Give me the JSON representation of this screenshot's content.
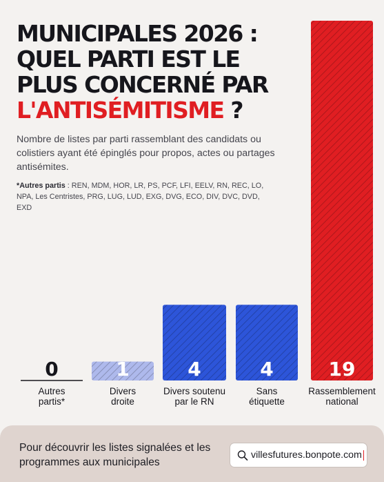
{
  "title": {
    "line1": "MUNICIPALES 2026 :",
    "line2": "QUEL PARTI EST LE",
    "line3": "PLUS CONCERNÉ PAR",
    "accent": "L'ANTISÉMITISME",
    "end": " ?"
  },
  "subtitle": "Nombre de listes par parti rassemblant des candidats ou colistiers ayant été épinglés pour propos, actes ou partages antisémites.",
  "note": {
    "label": "*Autres partis",
    "text": " : REN, MDM, HOR, LR, PS, PCF, LFI, EELV, RN, REC, LO, NPA, Les Centristes, PRG, LUG, LUD, EXG, DVG, ECO, DIV, DVC, DVD, EXD"
  },
  "chart_data": {
    "type": "bar",
    "categories": [
      "Autres partis*",
      "Divers droite",
      "Divers soutenu par le RN",
      "Sans étiquette",
      "Rassemblement national"
    ],
    "category_lines": [
      [
        "Autres",
        "partis*"
      ],
      [
        "Divers",
        "droite"
      ],
      [
        "Divers soutenu",
        "par le RN"
      ],
      [
        "Sans",
        "étiquette"
      ],
      [
        "Rassemblement",
        "national"
      ]
    ],
    "values": [
      0,
      1,
      4,
      4,
      19
    ],
    "value_labels": [
      "0",
      "1",
      "4",
      "4",
      "19"
    ],
    "bar_colors": [
      "#16161c",
      "#aeb9ec",
      "#2d55d9",
      "#2d55d9",
      "#e01e22"
    ],
    "label_colors": [
      "#16161c",
      "#ffffff",
      "#ffffff",
      "#ffffff",
      "#ffffff"
    ],
    "ylim": [
      0,
      19
    ],
    "grid": false,
    "legend": "none"
  },
  "footer": {
    "text": "Pour découvrir les listes signalées et les programmes aux municipales",
    "search_value": "villesfutures.bonpote.com",
    "search_icon": "search-icon"
  }
}
